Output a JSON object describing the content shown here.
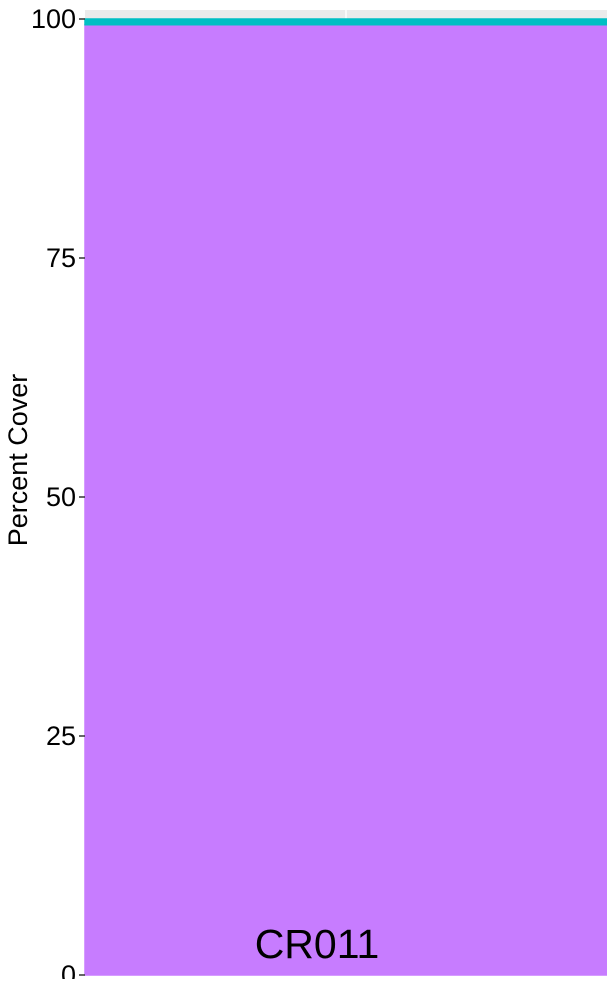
{
  "chart_data": {
    "type": "area",
    "title": "",
    "xlabel": "",
    "ylabel": "Percent Cover",
    "panel_label": "CR011",
    "ylim": [
      0,
      100
    ],
    "y_ticks": [
      0,
      25,
      50,
      75,
      100
    ],
    "grid": true,
    "x": [
      0,
      1
    ],
    "series": [
      {
        "values": [
          99.4,
          99.4
        ],
        "color": "#c77cff"
      },
      {
        "values": [
          0.6,
          0.6
        ],
        "color": "#00bfc4"
      }
    ],
    "panel_background": "#ebebeb"
  }
}
